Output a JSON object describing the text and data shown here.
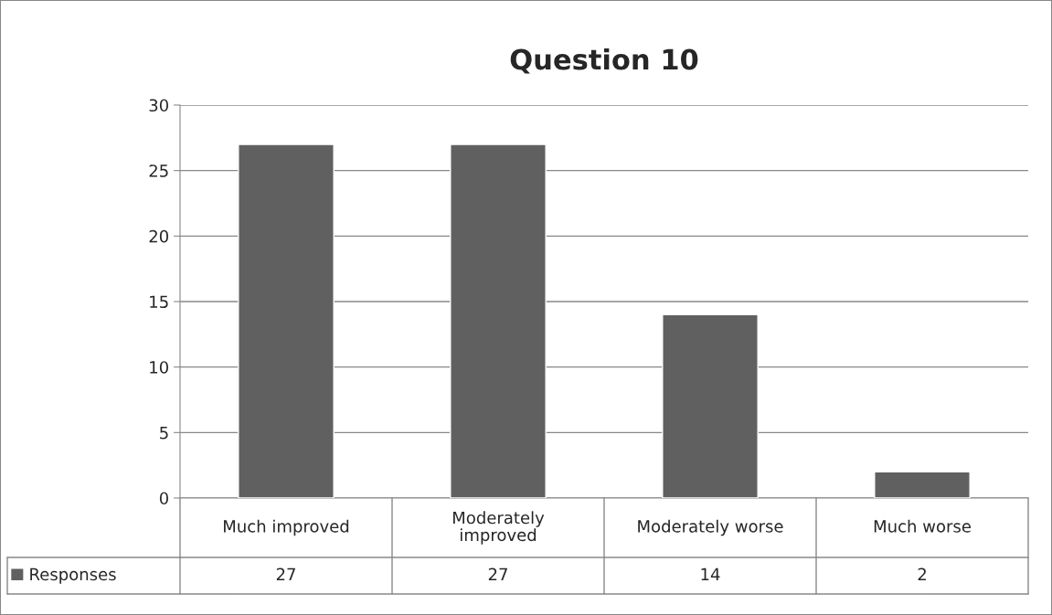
{
  "chart_data": {
    "type": "bar",
    "title": "Question 10",
    "categories": [
      "Much improved",
      "Moderately improved",
      "Moderately worse",
      "Much worse"
    ],
    "series": [
      {
        "name": "Responses",
        "color": "#606060",
        "values": [
          27,
          27,
          14,
          2
        ]
      }
    ],
    "ylim": [
      0,
      30
    ],
    "yticks": [
      0,
      5,
      10,
      15,
      20,
      25,
      30
    ],
    "grid": "y",
    "legend": "bottom",
    "data_labels": true
  }
}
